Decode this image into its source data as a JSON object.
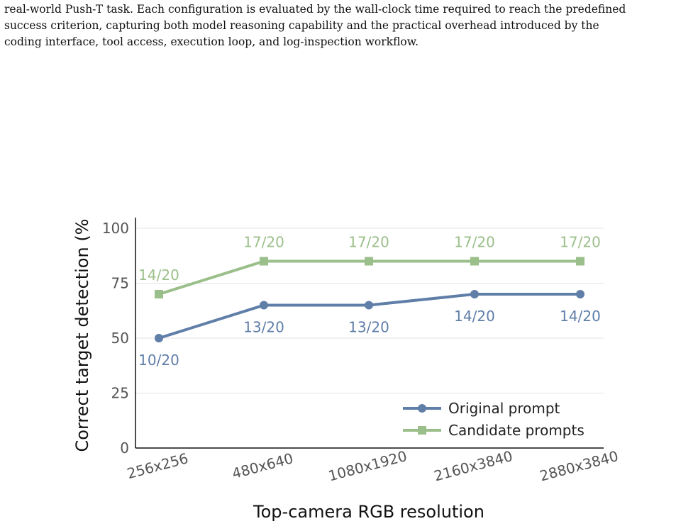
{
  "paragraph": {
    "lines": [
      "real-world Push-T task. Each configuration is evaluated by the wall-clock time required to reach the predefined",
      "success criterion, capturing both model reasoning capability and the practical overhead introduced by the",
      "coding interface, tool access, execution loop, and log-inspection workflow."
    ]
  },
  "colors": {
    "original": "#5f7ea8",
    "candidate": "#9bbf8a",
    "grid": "#e3e3e3",
    "axis": "#111111"
  },
  "chart_data": {
    "type": "line",
    "xlabel": "Top-camera RGB resolution",
    "ylabel": "Correct target detection (%",
    "categories": [
      "256x256",
      "480x640",
      "1080x1920",
      "2160x3840",
      "2880x3840"
    ],
    "ylim": [
      0,
      100
    ],
    "yticks": [
      0,
      25,
      50,
      75,
      100
    ],
    "grid": true,
    "legend_position": "lower-right",
    "series": [
      {
        "name": "Original prompt",
        "marker": "circle",
        "values": [
          50,
          65,
          65,
          70,
          70
        ],
        "labels": [
          "10/20",
          "13/20",
          "13/20",
          "14/20",
          "14/20"
        ]
      },
      {
        "name": "Candidate prompts",
        "marker": "square",
        "values": [
          70,
          85,
          85,
          85,
          85
        ],
        "labels": [
          "14/20",
          "17/20",
          "17/20",
          "17/20",
          "17/20"
        ]
      }
    ]
  }
}
